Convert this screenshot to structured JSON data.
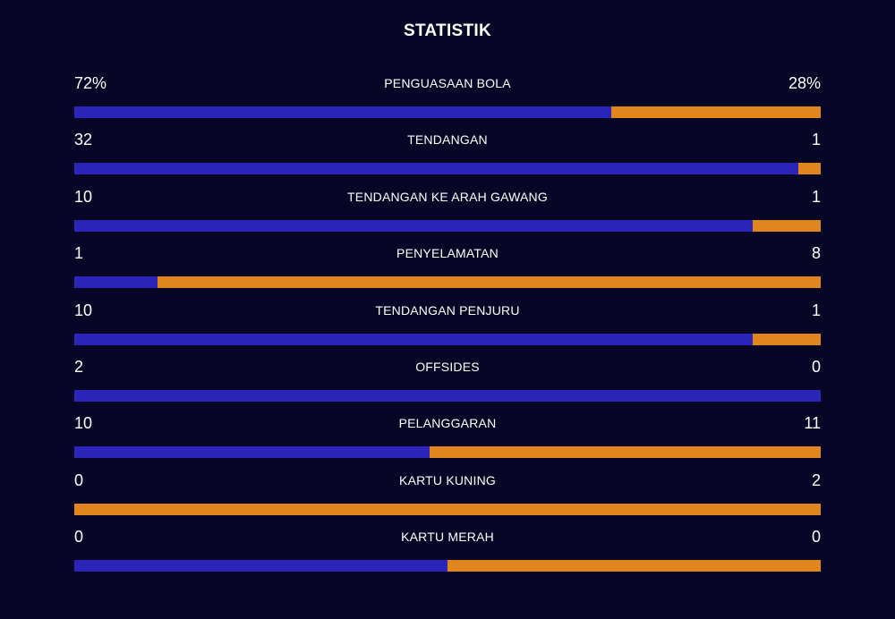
{
  "title": "STATISTIK",
  "colors": {
    "background": "#080626",
    "home": "#2a25b8",
    "away": "#e0861c",
    "text": "#ffffff"
  },
  "stats": [
    {
      "label": "PENGUASAAN BOLA",
      "home": "72%",
      "away": "28%",
      "home_share": 0.72
    },
    {
      "label": "TENDANGAN",
      "home": "32",
      "away": "1",
      "home_share": 0.9697
    },
    {
      "label": "TENDANGAN KE ARAH GAWANG",
      "home": "10",
      "away": "1",
      "home_share": 0.9091
    },
    {
      "label": "PENYELAMATAN",
      "home": "1",
      "away": "8",
      "home_share": 0.1111
    },
    {
      "label": "TENDANGAN PENJURU",
      "home": "10",
      "away": "1",
      "home_share": 0.9091
    },
    {
      "label": "OFFSIDES",
      "home": "2",
      "away": "0",
      "home_share": 1.0
    },
    {
      "label": "PELANGGARAN",
      "home": "10",
      "away": "11",
      "home_share": 0.4762
    },
    {
      "label": "KARTU KUNING",
      "home": "0",
      "away": "2",
      "home_share": 0.0
    },
    {
      "label": "KARTU MERAH",
      "home": "0",
      "away": "0",
      "home_share": 0.5
    }
  ]
}
